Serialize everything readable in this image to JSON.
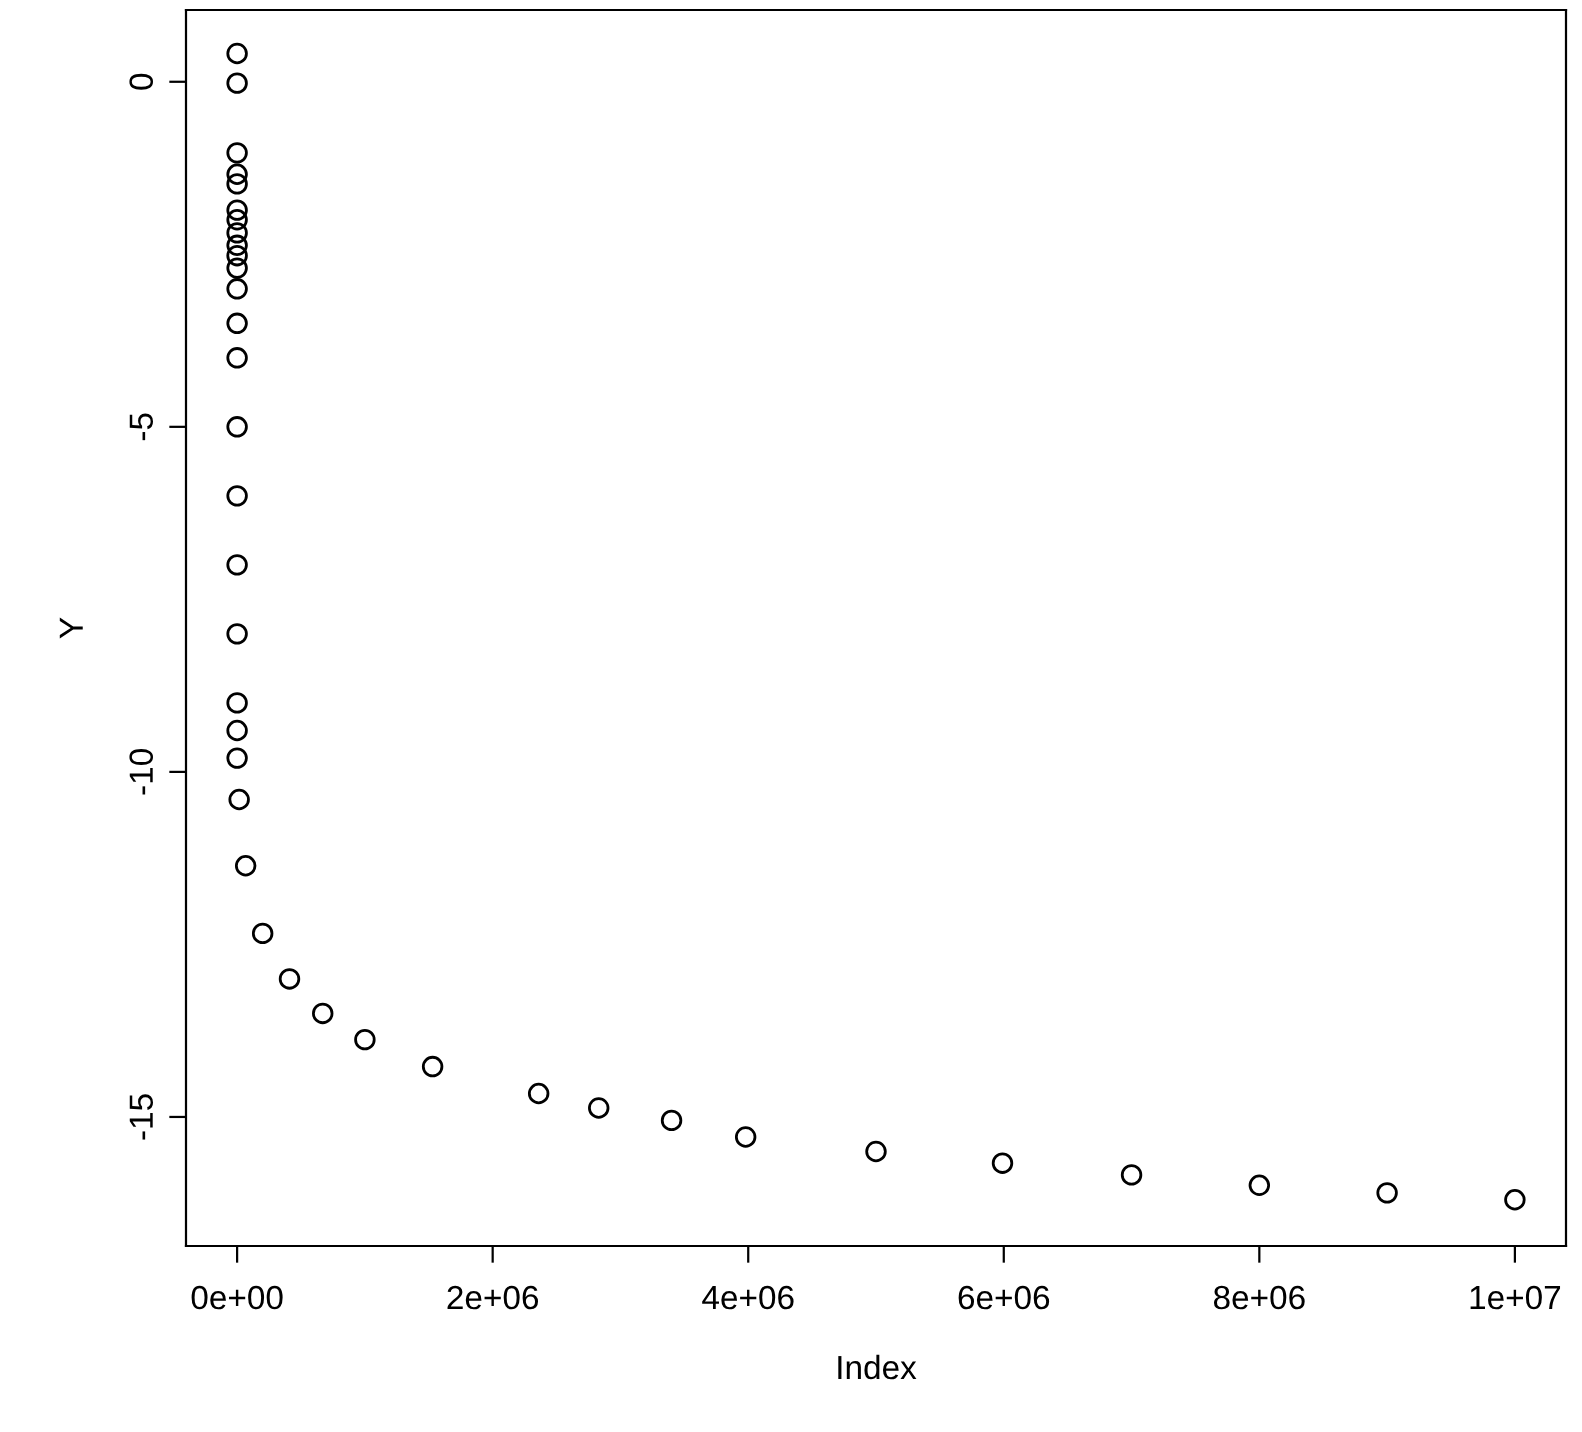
{
  "chart_data": {
    "type": "scatter",
    "xlabel": "Index",
    "ylabel": "Y",
    "x": [
      0,
      0,
      0,
      0,
      0,
      0,
      0,
      0,
      0,
      0,
      0,
      0,
      0,
      0,
      0,
      0,
      0,
      0,
      0,
      0,
      0,
      16000,
      67000,
      200000,
      410000,
      670000,
      1000000,
      1530000,
      2360000,
      2830000,
      3400000,
      3980000,
      5000000,
      5990000,
      7000000,
      8000000,
      9000000,
      10000000
    ],
    "series": [
      {
        "color": "#000000",
        "values": [
          0.41,
          -0.02,
          -1.03,
          -1.34,
          -1.48,
          -1.86,
          -2.0,
          -2.19,
          -2.37,
          -2.52,
          -2.7,
          -3.0,
          -3.5,
          -4.0,
          -5.0,
          -6.0,
          -7.0,
          -8.0,
          -9.0,
          -9.4,
          -9.8,
          -10.4,
          -11.36,
          -12.34,
          -13.0,
          -13.5,
          -13.88,
          -14.27,
          -14.66,
          -14.87,
          -15.05,
          -15.29,
          -15.5,
          -15.67,
          -15.84,
          -15.99,
          -16.1,
          -16.2
        ]
      }
    ],
    "marker": "circle",
    "grid": false,
    "legend": false,
    "xlim": [
      -400000,
      10400000
    ],
    "ylim": [
      -16.87,
      1.04
    ],
    "xticks": [
      {
        "value": 0,
        "label": "0e+00"
      },
      {
        "value": 2000000,
        "label": "2e+06"
      },
      {
        "value": 4000000,
        "label": "4e+06"
      },
      {
        "value": 6000000,
        "label": "6e+06"
      },
      {
        "value": 8000000,
        "label": "8e+06"
      },
      {
        "value": 10000000,
        "label": "1e+07"
      }
    ],
    "yticks": [
      0,
      -5,
      -10,
      -15
    ]
  }
}
